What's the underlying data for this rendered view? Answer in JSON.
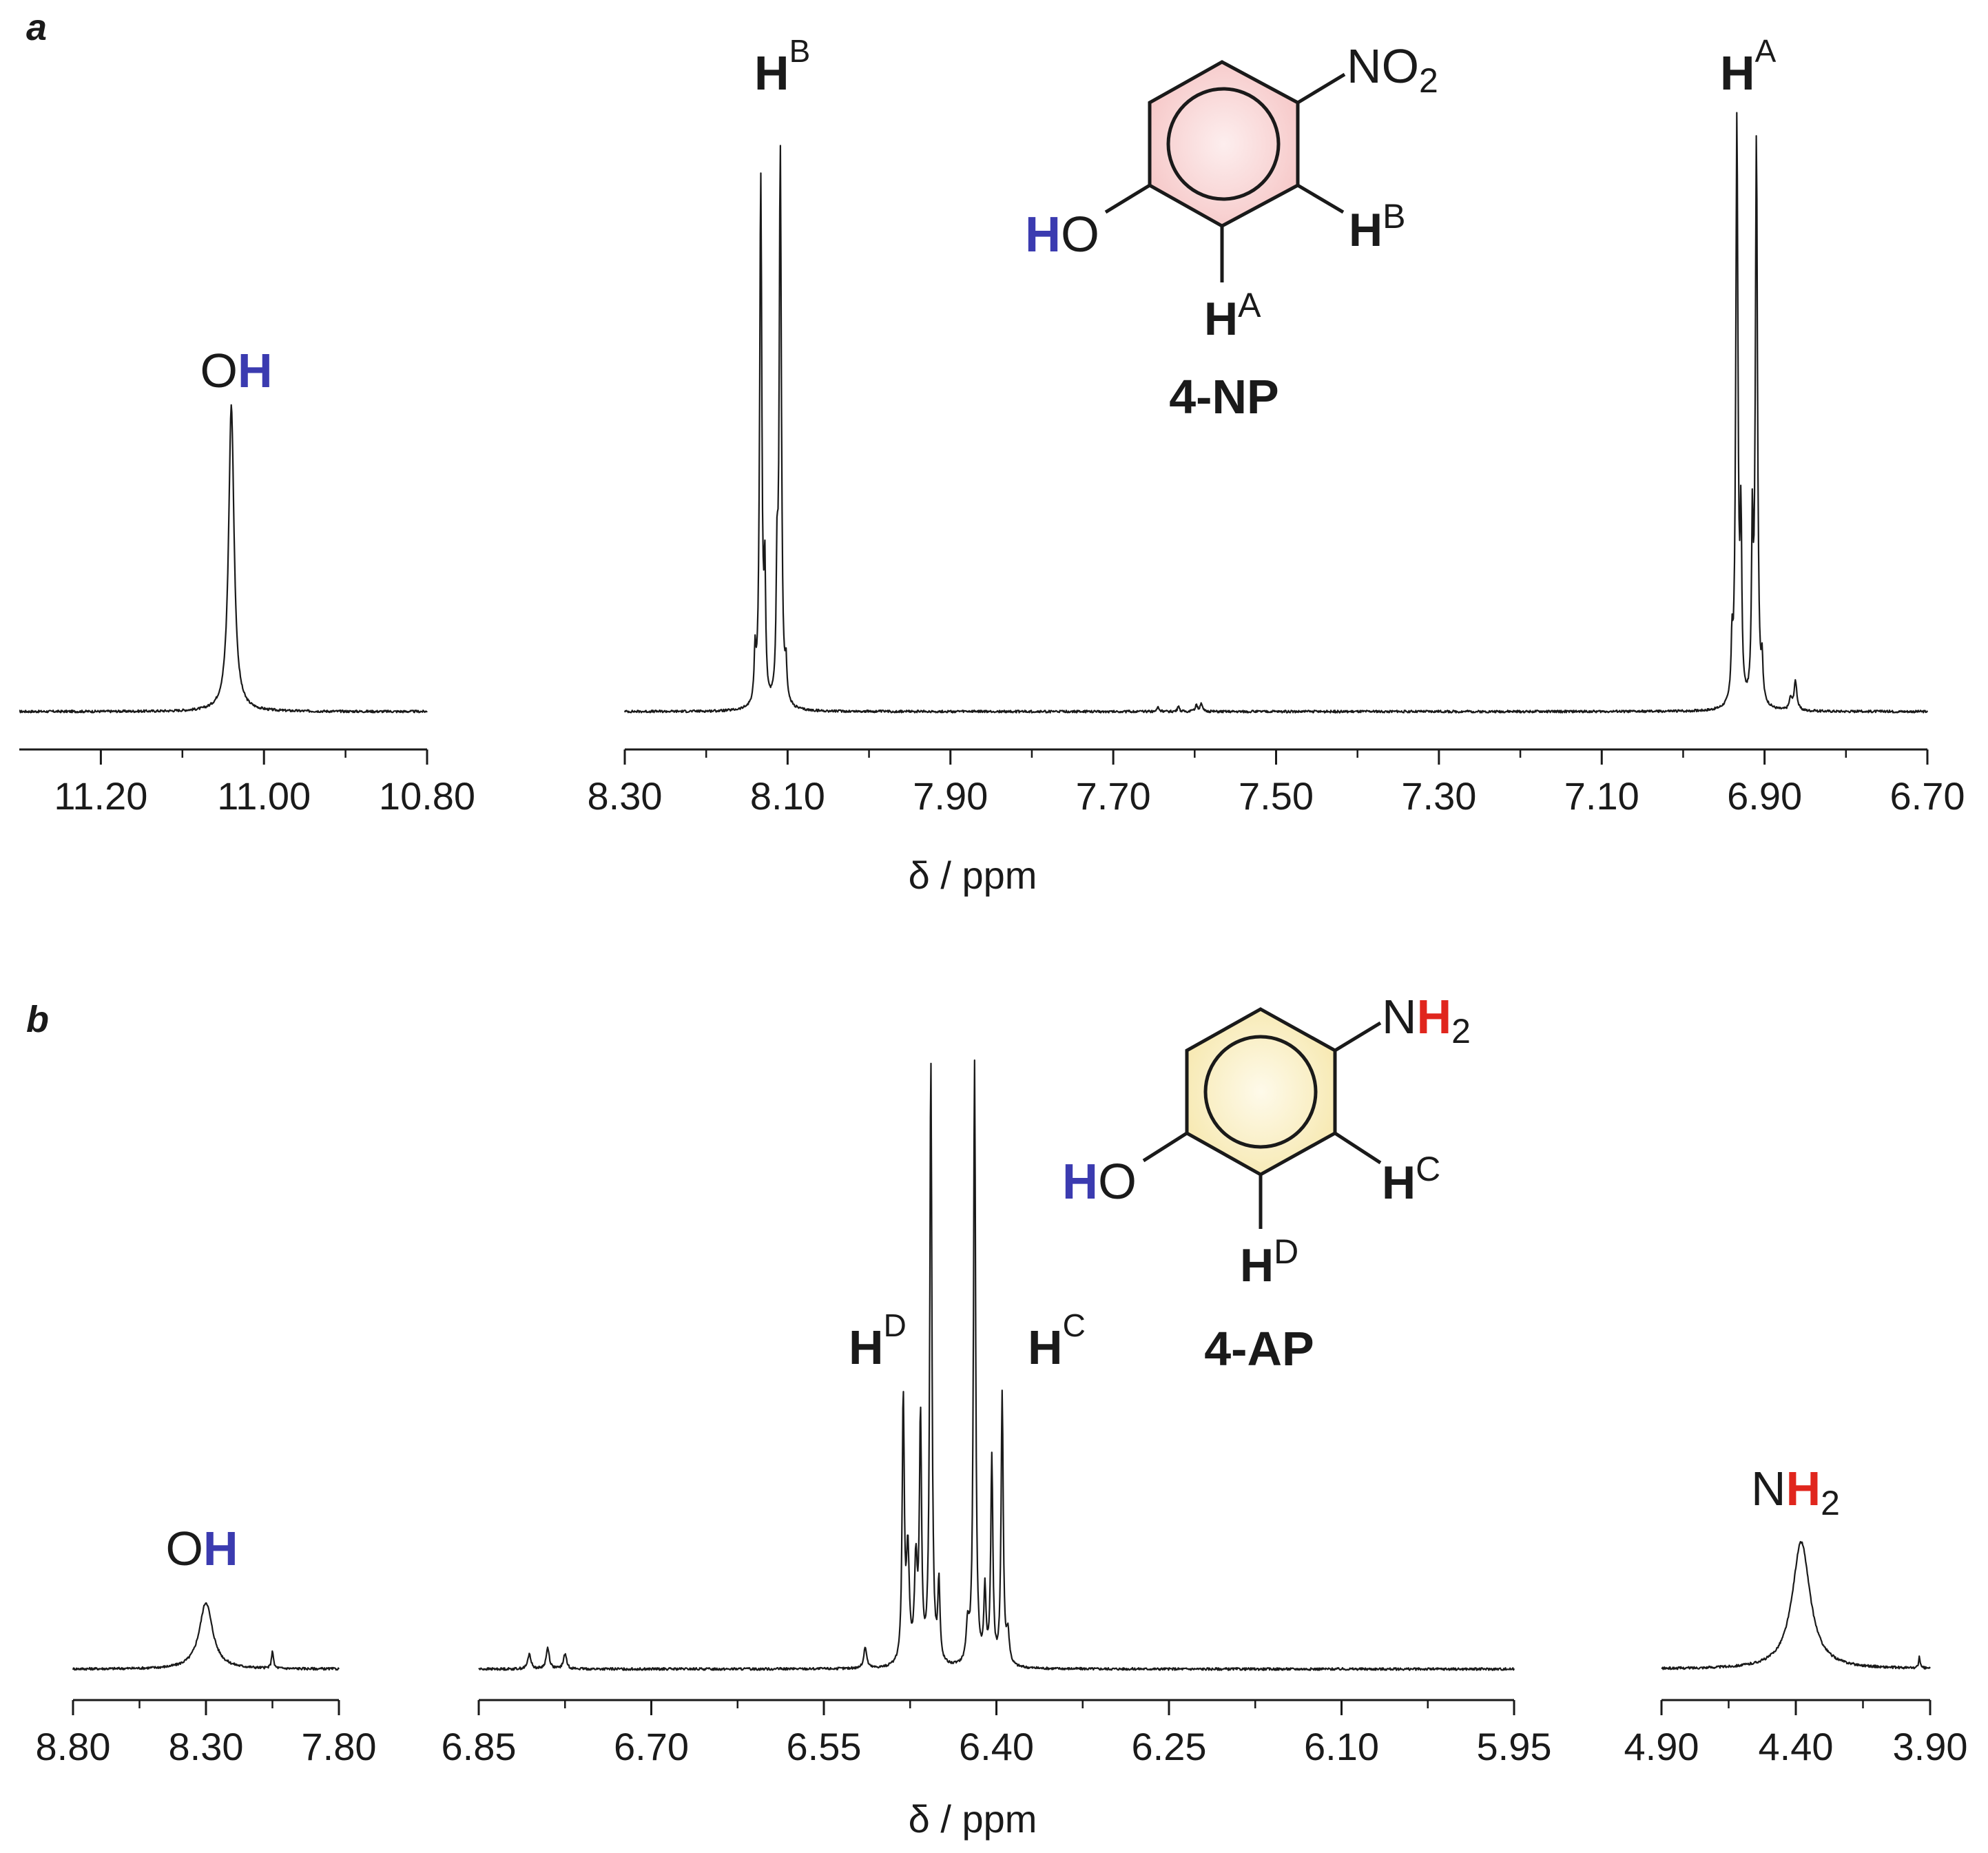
{
  "figure": {
    "panels": [
      {
        "letter": "a",
        "compound": "4-NP",
        "xlabel": "δ / ppm",
        "substituent_atoms": [
          "N",
          "O"
        ],
        "substituent_subscript": "2",
        "ring_fill": "#f6c9c9",
        "ring_fill_center": "#fdeeee"
      },
      {
        "letter": "b",
        "compound": "4-AP",
        "xlabel": "δ / ppm",
        "substituent_atoms": [
          "N",
          "H"
        ],
        "substituent_subscript": "2",
        "ring_fill": "#f7e9b2",
        "ring_fill_center": "#fefaea"
      }
    ],
    "colors": {
      "oh_h": "#3b3bb0",
      "nh_h": "#e0261d",
      "line": "#1a1a1a"
    }
  },
  "chart_data": [
    {
      "type": "line",
      "title": "a",
      "xlabel": "δ / ppm",
      "ylabel": "",
      "segments": [
        {
          "xlim": [
            11.3,
            10.8
          ],
          "ticks": [
            11.2,
            11.0,
            10.8
          ],
          "tick_labels": [
            "11.20",
            "11.00",
            "10.80"
          ],
          "peaks": [
            {
              "label": "OH",
              "label_parts": [
                "O",
                "H"
              ],
              "label_colors": [
                "#1a1a1a",
                "#3b3bb0"
              ],
              "center": 11.04,
              "height": 0.52,
              "width": 0.004
            }
          ],
          "lines": [
            {
              "x": 11.04,
              "h": 0.52,
              "w": 0.004
            }
          ]
        },
        {
          "xlim": [
            8.3,
            6.7
          ],
          "ticks": [
            8.3,
            8.1,
            7.9,
            7.7,
            7.5,
            7.3,
            7.1,
            6.9,
            6.7
          ],
          "tick_labels": [
            "8.30",
            "8.10",
            "7.90",
            "7.70",
            "7.50",
            "7.30",
            "7.10",
            "6.90",
            "6.70"
          ],
          "peaks": [
            {
              "label": "HB",
              "label_main": "H",
              "label_sup": "B",
              "center": 8.12,
              "height": 0.92
            },
            {
              "label": "HA",
              "label_main": "H",
              "label_sup": "A",
              "center": 6.92,
              "height": 1.0
            }
          ],
          "lines": [
            {
              "x": 8.133,
              "h": 0.9,
              "w": 0.0016
            },
            {
              "x": 8.109,
              "h": 0.94,
              "w": 0.0016
            },
            {
              "x": 8.128,
              "h": 0.2,
              "w": 0.0012
            },
            {
              "x": 8.113,
              "h": 0.2,
              "w": 0.0012
            },
            {
              "x": 8.14,
              "h": 0.08,
              "w": 0.0012
            },
            {
              "x": 8.102,
              "h": 0.06,
              "w": 0.0012
            },
            {
              "x": 6.934,
              "h": 1.0,
              "w": 0.0016
            },
            {
              "x": 6.91,
              "h": 0.96,
              "w": 0.0016
            },
            {
              "x": 6.929,
              "h": 0.28,
              "w": 0.0012
            },
            {
              "x": 6.915,
              "h": 0.28,
              "w": 0.0012
            },
            {
              "x": 6.94,
              "h": 0.09,
              "w": 0.0012
            },
            {
              "x": 6.903,
              "h": 0.06,
              "w": 0.0012
            },
            {
              "x": 6.862,
              "h": 0.05,
              "w": 0.002
            },
            {
              "x": 6.868,
              "h": 0.02,
              "w": 0.002
            },
            {
              "x": 7.592,
              "h": 0.015,
              "w": 0.0015
            },
            {
              "x": 7.598,
              "h": 0.012,
              "w": 0.0015
            },
            {
              "x": 7.645,
              "h": 0.008,
              "w": 0.0015
            },
            {
              "x": 7.62,
              "h": 0.008,
              "w": 0.0015
            }
          ]
        }
      ]
    },
    {
      "type": "line",
      "title": "b",
      "xlabel": "δ / ppm",
      "ylabel": "",
      "segments": [
        {
          "xlim": [
            8.8,
            7.8
          ],
          "ticks": [
            8.8,
            8.3,
            7.8
          ],
          "tick_labels": [
            "8.80",
            "8.30",
            "7.80"
          ],
          "peaks": [
            {
              "label": "OH",
              "label_parts": [
                "O",
                "H"
              ],
              "label_colors": [
                "#1a1a1a",
                "#3b3bb0"
              ],
              "center": 8.3,
              "height": 0.11,
              "width": 0.03
            }
          ],
          "lines": [
            {
              "x": 8.3,
              "h": 0.11,
              "w": 0.03
            },
            {
              "x": 8.05,
              "h": 0.03,
              "w": 0.004
            }
          ]
        },
        {
          "xlim": [
            6.85,
            5.95
          ],
          "ticks": [
            6.85,
            6.7,
            6.55,
            6.4,
            6.25,
            6.1,
            5.95
          ],
          "tick_labels": [
            "6.85",
            "6.70",
            "6.55",
            "6.40",
            "6.25",
            "6.10",
            "5.95"
          ],
          "peaks": [
            {
              "label": "HD",
              "label_main": "H",
              "label_sup": "D",
              "center": 6.46,
              "height": 1.0
            },
            {
              "label": "HC",
              "label_main": "H",
              "label_sup": "C",
              "center": 6.41,
              "height": 1.0
            }
          ],
          "lines": [
            {
              "x": 6.481,
              "h": 0.44,
              "w": 0.0011
            },
            {
              "x": 6.466,
              "h": 0.4,
              "w": 0.0011
            },
            {
              "x": 6.457,
              "h": 1.0,
              "w": 0.0011
            },
            {
              "x": 6.45,
              "h": 0.13,
              "w": 0.0011
            },
            {
              "x": 6.419,
              "h": 1.0,
              "w": 0.0011
            },
            {
              "x": 6.41,
              "h": 0.12,
              "w": 0.0011
            },
            {
              "x": 6.404,
              "h": 0.34,
              "w": 0.0011
            },
            {
              "x": 6.395,
              "h": 0.45,
              "w": 0.0011
            },
            {
              "x": 6.477,
              "h": 0.18,
              "w": 0.0015
            },
            {
              "x": 6.47,
              "h": 0.16,
              "w": 0.0015
            },
            {
              "x": 6.425,
              "h": 0.06,
              "w": 0.0015
            },
            {
              "x": 6.39,
              "h": 0.05,
              "w": 0.0015
            },
            {
              "x": 6.514,
              "h": 0.035,
              "w": 0.0015
            },
            {
              "x": 6.806,
              "h": 0.025,
              "w": 0.0016
            },
            {
              "x": 6.79,
              "h": 0.035,
              "w": 0.0016
            },
            {
              "x": 6.775,
              "h": 0.025,
              "w": 0.0016
            }
          ]
        },
        {
          "xlim": [
            4.9,
            3.9
          ],
          "ticks": [
            4.9,
            4.4,
            3.9
          ],
          "tick_labels": [
            "4.90",
            "4.40",
            "3.90"
          ],
          "peaks": [
            {
              "label": "NH2",
              "label_parts": [
                "N",
                "H"
              ],
              "label_colors": [
                "#1a1a1a",
                "#e0261d"
              ],
              "label_sub": "2",
              "center": 4.38,
              "height": 0.21,
              "width": 0.04
            }
          ],
          "lines": [
            {
              "x": 4.38,
              "h": 0.21,
              "w": 0.04
            },
            {
              "x": 3.94,
              "h": 0.02,
              "w": 0.003
            }
          ]
        }
      ]
    }
  ]
}
